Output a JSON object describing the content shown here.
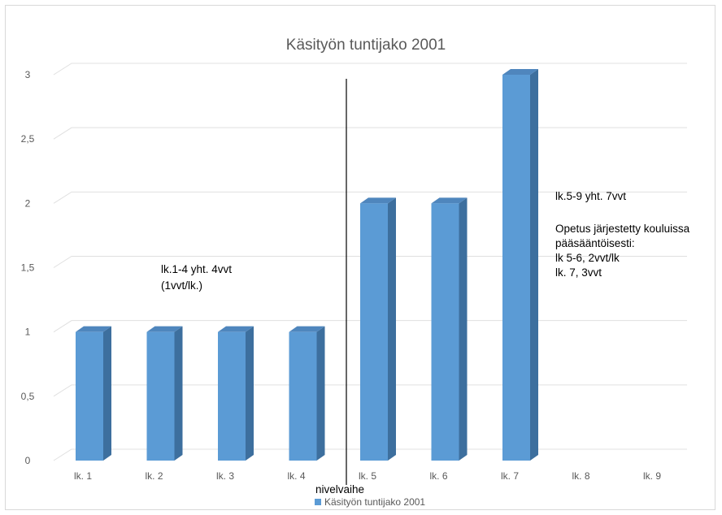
{
  "chart_data": {
    "type": "bar",
    "title": "Käsityön tuntijako 2001",
    "categories": [
      "lk. 1",
      "lk. 2",
      "lk. 3",
      "lk. 4",
      "lk. 5",
      "lk. 6",
      "lk. 7",
      "lk. 8",
      "lk. 9"
    ],
    "series": [
      {
        "name": "Käsityön tuntijako 2001",
        "values": [
          1,
          1,
          1,
          1,
          2,
          2,
          3,
          0,
          0
        ]
      }
    ],
    "yticks": [
      "0",
      "0,5",
      "1",
      "1,5",
      "2",
      "2,5",
      "3"
    ],
    "ylim": [
      0,
      3
    ],
    "xlabel": "",
    "ylabel": "",
    "grid": true,
    "legend": "bottom",
    "colors": {
      "bar_front": "#5b9bd5",
      "bar_side": "#3d6f9e",
      "bar_top": "#4f86bd",
      "grid": "#e0e0e0"
    },
    "annotations": {
      "left_line1": "lk.1-4 yht. 4vvt",
      "left_line2": "(1vvt/lk.)",
      "divider_label": "nivelvaihe",
      "right_line1": "lk.5-9 yht. 7vvt",
      "right_line2": "Opetus järjestetty kouluissa",
      "right_line3": "pääsääntöisesti:",
      "right_line4": "lk 5-6,  2vvt/lk",
      "right_line5": "lk. 7,  3vvt"
    }
  }
}
